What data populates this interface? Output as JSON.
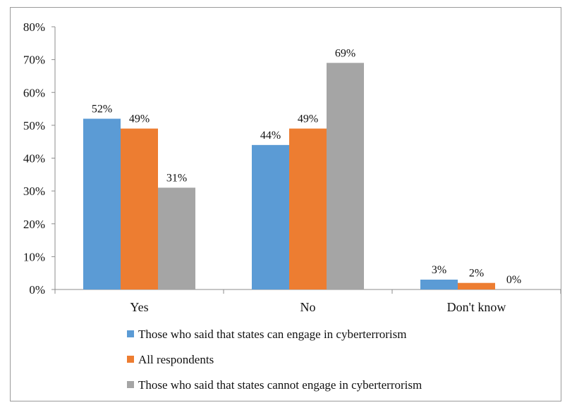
{
  "chart_data": {
    "type": "bar",
    "categories": [
      "Yes",
      "No",
      "Don't know"
    ],
    "series": [
      {
        "name": "Those who said that states can engage in cyberterrorism",
        "values": [
          52,
          44,
          3
        ],
        "color": "#5b9bd5"
      },
      {
        "name": "All respondents",
        "values": [
          49,
          49,
          2
        ],
        "color": "#ed7d31"
      },
      {
        "name": "Those who said that states cannot engage in cyberterrorism",
        "values": [
          31,
          69,
          0
        ],
        "color": "#a5a5a5"
      }
    ],
    "data_labels": [
      [
        "52%",
        "44%",
        "3%"
      ],
      [
        "49%",
        "49%",
        "2%"
      ],
      [
        "31%",
        "69%",
        "0%"
      ]
    ],
    "yticks": [
      "0%",
      "10%",
      "20%",
      "30%",
      "40%",
      "50%",
      "60%",
      "70%",
      "80%"
    ],
    "ylim": [
      0,
      80
    ],
    "grid": false,
    "legend": "bottom",
    "title": "",
    "xlabel": "",
    "ylabel": ""
  }
}
